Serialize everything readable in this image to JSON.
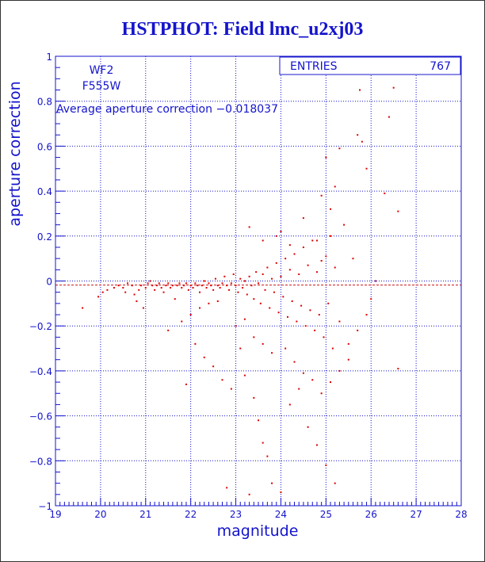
{
  "title": "HSTPHOT: Field lmc_u2xj03",
  "chart_data": {
    "type": "scatter",
    "title": "HSTPHOT: Field lmc_u2xj03",
    "xlabel": "magnitude",
    "ylabel": "aperture correction",
    "xlim": [
      19,
      28
    ],
    "ylim": [
      -1,
      1
    ],
    "xticks": [
      "19",
      "20",
      "21",
      "22",
      "23",
      "24",
      "25",
      "26",
      "27",
      "28"
    ],
    "yticks": [
      "−1",
      "−0.8",
      "−0.6",
      "−0.4",
      "−0.2",
      "0",
      "0.2",
      "0.4",
      "0.6",
      "0.8",
      "1"
    ],
    "grid": true,
    "average_line": -0.018037,
    "labels": {
      "chip": "WF2",
      "filter": "F555W",
      "average": "Average aperture correction −0.018037"
    },
    "stats": {
      "entries_label": "ENTRIES",
      "entries_value": "767"
    },
    "colors": {
      "text": "#1414cc",
      "grid": "#1414cc",
      "points": "#dd0000",
      "average_line": "#cc1414"
    },
    "points": [
      [
        19.6,
        -0.12
      ],
      [
        19.95,
        -0.07
      ],
      [
        20.05,
        -0.05
      ],
      [
        20.15,
        -0.04
      ],
      [
        20.3,
        -0.03
      ],
      [
        20.4,
        -0.02
      ],
      [
        20.5,
        -0.03
      ],
      [
        20.55,
        -0.05
      ],
      [
        20.6,
        -0.01
      ],
      [
        20.7,
        -0.02
      ],
      [
        20.75,
        -0.06
      ],
      [
        20.8,
        -0.09
      ],
      [
        20.85,
        -0.04
      ],
      [
        20.9,
        -0.02
      ],
      [
        20.95,
        -0.12
      ],
      [
        21.0,
        -0.03
      ],
      [
        21.05,
        -0.01
      ],
      [
        21.1,
        0.0
      ],
      [
        21.15,
        -0.02
      ],
      [
        21.2,
        -0.04
      ],
      [
        21.25,
        -0.02
      ],
      [
        21.3,
        -0.01
      ],
      [
        21.35,
        -0.03
      ],
      [
        21.4,
        -0.05
      ],
      [
        21.45,
        -0.02
      ],
      [
        21.5,
        -0.01
      ],
      [
        21.55,
        -0.03
      ],
      [
        21.6,
        -0.02
      ],
      [
        21.65,
        -0.08
      ],
      [
        21.7,
        -0.02
      ],
      [
        21.75,
        -0.01
      ],
      [
        21.8,
        -0.03
      ],
      [
        21.85,
        -0.02
      ],
      [
        21.9,
        -0.01
      ],
      [
        21.95,
        -0.04
      ],
      [
        22.0,
        -0.02
      ],
      [
        22.05,
        -0.03
      ],
      [
        22.1,
        -0.01
      ],
      [
        22.15,
        -0.02
      ],
      [
        22.2,
        -0.05
      ],
      [
        22.25,
        -0.02
      ],
      [
        22.3,
        0.0
      ],
      [
        22.35,
        -0.03
      ],
      [
        22.4,
        -0.01
      ],
      [
        22.45,
        -0.02
      ],
      [
        22.5,
        -0.04
      ],
      [
        22.55,
        0.01
      ],
      [
        22.6,
        -0.02
      ],
      [
        22.65,
        -0.03
      ],
      [
        22.7,
        -0.01
      ],
      [
        22.75,
        0.02
      ],
      [
        22.8,
        -0.02
      ],
      [
        22.85,
        -0.04
      ],
      [
        22.9,
        -0.01
      ],
      [
        22.95,
        0.03
      ],
      [
        23.0,
        -0.02
      ],
      [
        23.05,
        -0.05
      ],
      [
        23.1,
        0.01
      ],
      [
        23.15,
        -0.03
      ],
      [
        23.2,
        0.0
      ],
      [
        23.25,
        -0.06
      ],
      [
        23.3,
        0.02
      ],
      [
        23.35,
        -0.02
      ],
      [
        23.4,
        -0.08
      ],
      [
        23.45,
        0.04
      ],
      [
        23.5,
        -0.01
      ],
      [
        23.55,
        -0.1
      ],
      [
        23.6,
        0.03
      ],
      [
        23.65,
        -0.04
      ],
      [
        23.7,
        0.06
      ],
      [
        23.75,
        -0.12
      ],
      [
        23.8,
        0.01
      ],
      [
        23.85,
        -0.05
      ],
      [
        23.9,
        0.08
      ],
      [
        23.95,
        -0.14
      ],
      [
        24.0,
        0.02
      ],
      [
        24.05,
        -0.07
      ],
      [
        24.1,
        0.1
      ],
      [
        24.15,
        -0.16
      ],
      [
        24.2,
        0.05
      ],
      [
        24.25,
        -0.09
      ],
      [
        24.3,
        0.12
      ],
      [
        24.35,
        -0.18
      ],
      [
        24.4,
        0.03
      ],
      [
        24.45,
        -0.11
      ],
      [
        24.5,
        0.15
      ],
      [
        24.55,
        -0.2
      ],
      [
        24.6,
        0.07
      ],
      [
        24.65,
        -0.13
      ],
      [
        24.7,
        0.18
      ],
      [
        24.75,
        -0.22
      ],
      [
        24.8,
        0.04
      ],
      [
        24.85,
        -0.15
      ],
      [
        24.9,
        0.09
      ],
      [
        24.95,
        -0.25
      ],
      [
        25.0,
        0.11
      ],
      [
        25.05,
        -0.1
      ],
      [
        25.1,
        0.2
      ],
      [
        25.15,
        -0.3
      ],
      [
        25.2,
        0.06
      ],
      [
        25.3,
        -0.18
      ],
      [
        25.4,
        0.25
      ],
      [
        25.5,
        -0.35
      ],
      [
        25.6,
        0.1
      ],
      [
        25.7,
        0.65
      ],
      [
        25.75,
        0.85
      ],
      [
        25.8,
        0.62
      ],
      [
        25.9,
        0.5
      ],
      [
        26.1,
        0.0
      ],
      [
        26.3,
        0.39
      ],
      [
        26.4,
        0.73
      ],
      [
        26.5,
        0.86
      ],
      [
        26.6,
        0.31
      ],
      [
        26.6,
        -0.39
      ],
      [
        25.3,
        0.59
      ],
      [
        25.2,
        0.42
      ],
      [
        25.1,
        0.32
      ],
      [
        25.0,
        0.55
      ],
      [
        24.9,
        0.38
      ],
      [
        24.5,
        0.28
      ],
      [
        23.3,
        0.24
      ],
      [
        24.0,
        0.22
      ],
      [
        23.6,
        0.18
      ],
      [
        23.9,
        0.2
      ],
      [
        24.2,
        0.16
      ],
      [
        24.8,
        0.18
      ],
      [
        23.1,
        -0.3
      ],
      [
        23.2,
        -0.42
      ],
      [
        23.4,
        -0.52
      ],
      [
        23.5,
        -0.62
      ],
      [
        23.6,
        -0.72
      ],
      [
        23.7,
        -0.78
      ],
      [
        23.8,
        -0.9
      ],
      [
        24.0,
        -0.94
      ],
      [
        24.2,
        -0.55
      ],
      [
        24.4,
        -0.48
      ],
      [
        24.6,
        -0.65
      ],
      [
        24.8,
        -0.73
      ],
      [
        25.0,
        -0.82
      ],
      [
        25.2,
        -0.9
      ],
      [
        22.8,
        -0.92
      ],
      [
        23.3,
        -0.95
      ],
      [
        21.9,
        -0.46
      ],
      [
        22.1,
        -0.28
      ],
      [
        22.3,
        -0.34
      ],
      [
        22.5,
        -0.38
      ],
      [
        22.7,
        -0.44
      ],
      [
        22.9,
        -0.48
      ],
      [
        21.5,
        -0.22
      ],
      [
        21.8,
        -0.18
      ],
      [
        22.0,
        -0.15
      ],
      [
        22.2,
        -0.12
      ],
      [
        22.4,
        -0.1
      ],
      [
        22.6,
        -0.09
      ],
      [
        23.0,
        -0.2
      ],
      [
        23.2,
        -0.17
      ],
      [
        23.4,
        -0.25
      ],
      [
        23.6,
        -0.28
      ],
      [
        23.8,
        -0.32
      ],
      [
        24.1,
        -0.3
      ],
      [
        24.3,
        -0.36
      ],
      [
        24.5,
        -0.41
      ],
      [
        24.7,
        -0.44
      ],
      [
        24.9,
        -0.5
      ],
      [
        25.1,
        -0.45
      ],
      [
        25.3,
        -0.4
      ],
      [
        25.5,
        -0.28
      ],
      [
        25.7,
        -0.22
      ],
      [
        25.9,
        -0.15
      ],
      [
        26.0,
        -0.08
      ]
    ]
  }
}
